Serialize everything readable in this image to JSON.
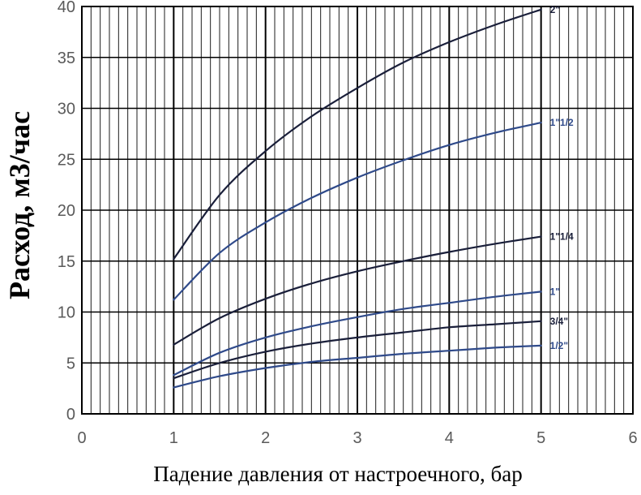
{
  "chart_data": {
    "type": "line",
    "title": "",
    "xlabel": "Падение давления от настроечного, бар",
    "ylabel": "Расход, м3/час",
    "xlim": [
      0,
      6
    ],
    "ylim": [
      0,
      40
    ],
    "xticks": [
      0,
      1,
      2,
      3,
      4,
      5,
      6
    ],
    "yticks": [
      0,
      5,
      10,
      15,
      20,
      25,
      30,
      35,
      40
    ],
    "grid": true,
    "x": [
      1,
      1.5,
      2,
      2.5,
      3,
      3.5,
      4,
      4.5,
      5
    ],
    "series": [
      {
        "name": "2\"",
        "color": "#1a1f3a",
        "values": [
          15.2,
          21.5,
          25.8,
          29.2,
          32.0,
          34.5,
          36.5,
          38.2,
          39.7
        ]
      },
      {
        "name": "1\"1/2",
        "color": "#2f4a8a",
        "values": [
          11.2,
          15.8,
          18.8,
          21.2,
          23.2,
          24.9,
          26.4,
          27.6,
          28.6
        ]
      },
      {
        "name": "1\"1/4",
        "color": "#1a1f3a",
        "values": [
          6.8,
          9.4,
          11.3,
          12.8,
          14.0,
          15.0,
          15.9,
          16.7,
          17.4
        ]
      },
      {
        "name": "1\"",
        "color": "#2f4a8a",
        "values": [
          3.8,
          6.0,
          7.5,
          8.6,
          9.5,
          10.3,
          10.9,
          11.5,
          12.0
        ]
      },
      {
        "name": "3/4\"",
        "color": "#1a1f3a",
        "values": [
          3.5,
          5.0,
          6.1,
          6.9,
          7.5,
          8.0,
          8.5,
          8.8,
          9.1
        ]
      },
      {
        "name": "1/2\"",
        "color": "#2f4a8a",
        "values": [
          2.6,
          3.7,
          4.5,
          5.1,
          5.5,
          5.9,
          6.2,
          6.5,
          6.7
        ]
      }
    ]
  }
}
